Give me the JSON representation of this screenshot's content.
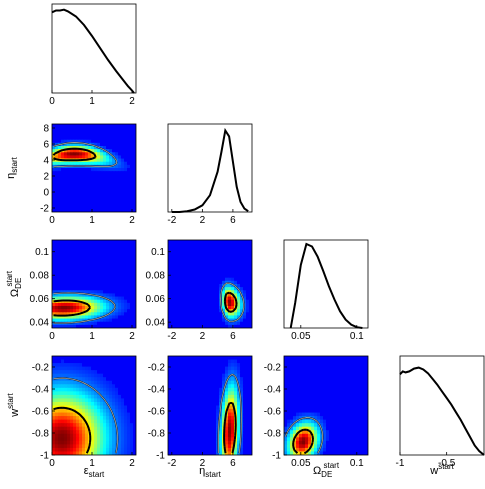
{
  "chart_data": {
    "type": "corner",
    "parameters": [
      {
        "id": "eps",
        "symbol": "ε",
        "sub": "start",
        "sup": "",
        "range": [
          0,
          2.1
        ],
        "ticks": [
          0,
          1,
          2
        ]
      },
      {
        "id": "eta",
        "symbol": "η",
        "sub": "start",
        "sup": "",
        "range": [
          -2.5,
          8.5
        ],
        "ticks": [
          -2,
          2,
          6
        ]
      },
      {
        "id": "omega",
        "symbol": "Ω",
        "sub": "DE",
        "sup": "start",
        "range": [
          0.035,
          0.11
        ],
        "ticks": [
          0.05,
          0.1
        ]
      },
      {
        "id": "w",
        "symbol": "w",
        "sub": "",
        "sup": "start",
        "range": [
          -1,
          -0.1
        ],
        "ticks": [
          -1,
          -0.5
        ]
      }
    ],
    "row_ticks": {
      "eta": [
        -2,
        0,
        2,
        4,
        6,
        8
      ],
      "omega": [
        0.04,
        0.06,
        0.08,
        0.1
      ],
      "w": [
        -1,
        -0.8,
        -0.6,
        -0.4,
        -0.2
      ]
    },
    "row_tick_labels": {
      "eta": [
        "-2",
        "0",
        "2",
        "4",
        "6",
        "8"
      ],
      "omega": [
        "0.04",
        "0.06",
        "0.08",
        "0.1"
      ],
      "w": [
        "-1",
        "-0.8",
        "-0.6",
        "-0.4",
        "-0.2"
      ]
    },
    "col_tick_labels": {
      "eps": [
        "0",
        "1",
        "2"
      ],
      "eta": [
        "-2",
        "2",
        "6"
      ],
      "omega": [
        "0.05",
        "0.1"
      ],
      "w": [
        "-1",
        "-0.5"
      ]
    },
    "marginals": {
      "eps": {
        "x": [
          0,
          0.1,
          0.2,
          0.3,
          0.4,
          0.6,
          0.8,
          1.0,
          1.2,
          1.4,
          1.6,
          1.8,
          1.9,
          2.0,
          2.05
        ],
        "y": [
          0.95,
          0.97,
          0.97,
          0.98,
          0.96,
          0.9,
          0.8,
          0.67,
          0.53,
          0.39,
          0.26,
          0.14,
          0.08,
          0.03,
          0.0
        ]
      },
      "eta": {
        "x": [
          -2,
          -1,
          0,
          1,
          2,
          3,
          4,
          4.5,
          5,
          5.5,
          6,
          6.5,
          7,
          7.5,
          8
        ],
        "y": [
          0.0,
          0.0,
          0.01,
          0.03,
          0.08,
          0.2,
          0.48,
          0.72,
          0.97,
          0.9,
          0.6,
          0.3,
          0.12,
          0.04,
          0.01
        ]
      },
      "omega": {
        "x": [
          0.041,
          0.045,
          0.05,
          0.055,
          0.06,
          0.065,
          0.07,
          0.075,
          0.08,
          0.085,
          0.09,
          0.095,
          0.1,
          0.105
        ],
        "y": [
          0.0,
          0.3,
          0.75,
          1.0,
          0.97,
          0.85,
          0.68,
          0.5,
          0.34,
          0.2,
          0.1,
          0.04,
          0.01,
          0.0
        ]
      },
      "w": {
        "x": [
          -1,
          -0.97,
          -0.94,
          -0.9,
          -0.85,
          -0.8,
          -0.75,
          -0.7,
          -0.65,
          -0.6,
          -0.55,
          -0.5,
          -0.45,
          -0.4,
          -0.35,
          -0.3,
          -0.25,
          -0.2,
          -0.15,
          -0.1
        ],
        "y": [
          0.85,
          0.88,
          0.87,
          0.88,
          0.91,
          0.92,
          0.9,
          0.86,
          0.8,
          0.74,
          0.67,
          0.6,
          0.53,
          0.45,
          0.37,
          0.28,
          0.19,
          0.1,
          0.04,
          0.0
        ]
      }
    },
    "joint": [
      {
        "x": "eps",
        "y": "eta",
        "peak": [
          0.55,
          4.7
        ],
        "width": [
          0.55,
          0.9
        ],
        "tilt": -0.3,
        "curve": "banana"
      },
      {
        "x": "eps",
        "y": "omega",
        "peak": [
          0.3,
          0.052
        ],
        "width": [
          0.65,
          0.008
        ],
        "tilt": 0.2,
        "curve": "none"
      },
      {
        "x": "eta",
        "y": "omega",
        "peak": [
          5.5,
          0.057
        ],
        "width": [
          0.9,
          0.01
        ],
        "tilt": -0.4,
        "curve": "tri"
      },
      {
        "x": "eps",
        "y": "w",
        "peak": [
          0.25,
          -0.85
        ],
        "width": [
          0.7,
          0.35
        ],
        "tilt": 0.0,
        "curve": "none"
      },
      {
        "x": "eta",
        "y": "w",
        "peak": [
          5.6,
          -0.78
        ],
        "width": [
          0.8,
          0.3
        ],
        "tilt": 0.6,
        "curve": "none"
      },
      {
        "x": "omega",
        "y": "w",
        "peak": [
          0.052,
          -0.88
        ],
        "width": [
          0.01,
          0.12
        ],
        "tilt": 0.9,
        "curve": "none"
      }
    ],
    "colormap": "jet",
    "contours": "68% and 95% credible regions"
  }
}
